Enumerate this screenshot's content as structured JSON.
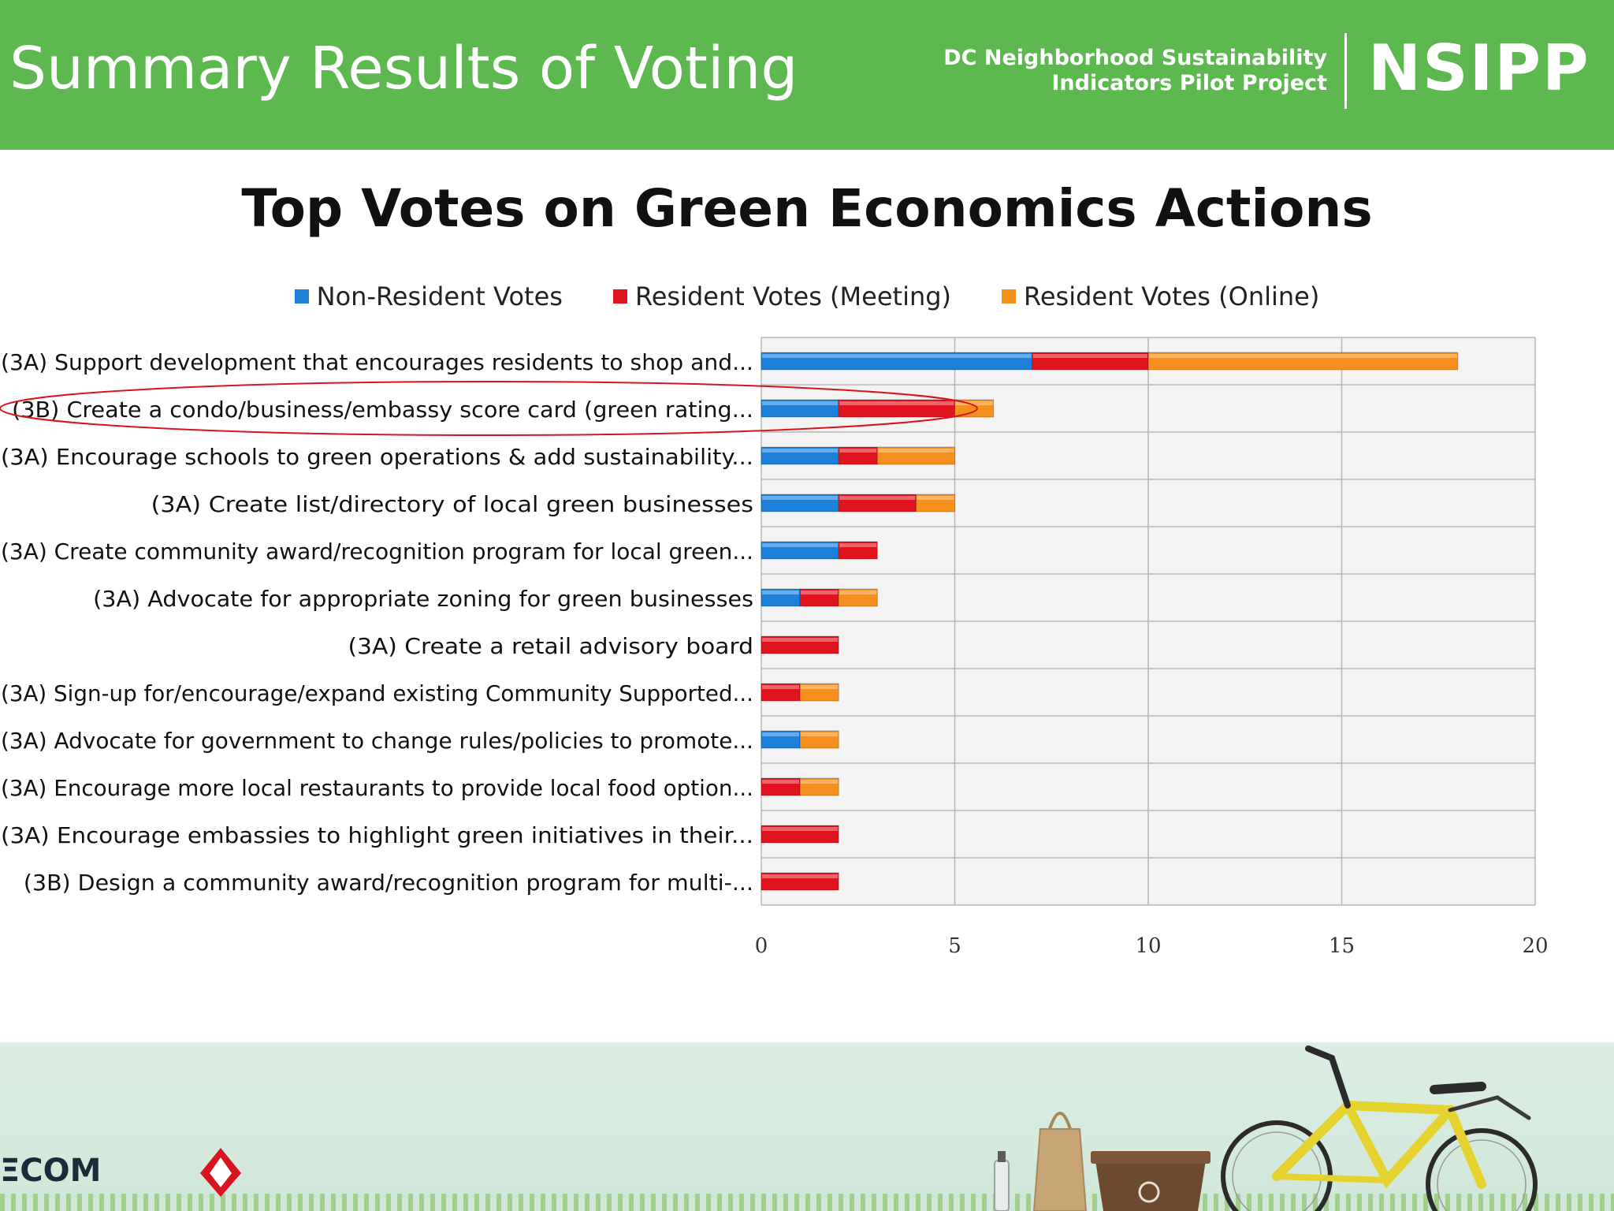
{
  "slide": {
    "title": "Summary Results of Voting",
    "project_line1": "DC Neighborhood Sustainability",
    "project_line2": "Indicators Pilot Project",
    "logo": "NSIPP"
  },
  "footer": {
    "logo_text": "ΞCOM"
  },
  "colors": {
    "header_green": "#5cb84f",
    "non_resident": "#1e7fd8",
    "resident_meeting": "#e0141e",
    "resident_online": "#f5901e",
    "highlight_ellipse": "#d9141e"
  },
  "icons": [
    "bicycle-illustration",
    "recycling-bin-illustration",
    "paper-bag-illustration",
    "bottle-illustration",
    "district-seal-icon"
  ],
  "chart_data": {
    "type": "bar",
    "orientation": "horizontal",
    "stacked": true,
    "title": "Top Votes on Green Economics Actions",
    "xlabel": "",
    "ylabel": "",
    "xlim": [
      0,
      20
    ],
    "xticks": [
      "0",
      "5",
      "10",
      "15",
      "20"
    ],
    "grid": true,
    "legend_position": "top",
    "highlighted_category": "(3B) Create a condo/business/embassy score card (green rating...",
    "categories": [
      "(3A) Support development that encourages residents to shop and...",
      "(3B) Create a condo/business/embassy score card (green rating...",
      "(3A) Encourage schools to green operations & add sustainability...",
      "(3A) Create list/directory of local green businesses",
      "(3A) Create community award/recognition program for local green...",
      "(3A) Advocate for appropriate zoning for green businesses",
      "(3A) Create a retail advisory board",
      "(3A) Sign-up for/encourage/expand existing Community Supported...",
      "(3A) Advocate for government to change rules/policies to promote...",
      "(3A) Encourage more local restaurants to provide local food option...",
      "(3A) Encourage embassies to highlight green initiatives in their...",
      "(3B) Design a community award/recognition program for multi-..."
    ],
    "series": [
      {
        "name": "Non-Resident Votes",
        "color": "#1e7fd8",
        "values": [
          7,
          2,
          2,
          2,
          2,
          1,
          0,
          0,
          1,
          0,
          0,
          0
        ]
      },
      {
        "name": "Resident Votes (Meeting)",
        "color": "#e0141e",
        "values": [
          3,
          3,
          1,
          2,
          1,
          1,
          2,
          1,
          0,
          1,
          2,
          2
        ]
      },
      {
        "name": "Resident Votes (Online)",
        "color": "#f5901e",
        "values": [
          8,
          1,
          2,
          1,
          0,
          1,
          0,
          1,
          1,
          1,
          0,
          0
        ]
      }
    ]
  }
}
